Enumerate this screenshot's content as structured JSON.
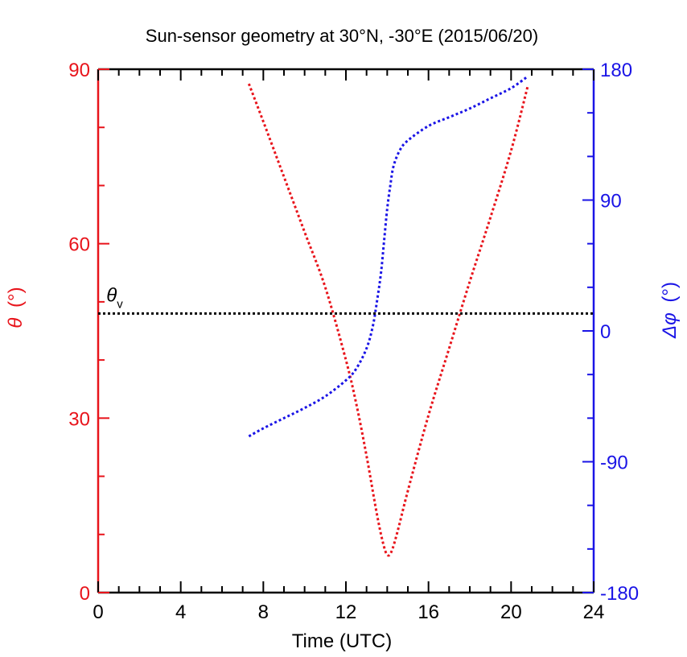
{
  "chart_data": {
    "type": "line",
    "title": "Sun-sensor geometry at 30°N, -30°E (2015/06/20)",
    "xlabel": "Time (UTC)",
    "xlim": [
      0,
      24
    ],
    "x_ticks": [
      0,
      4,
      8,
      12,
      16,
      20,
      24
    ],
    "y_left": {
      "label": "θ (°)",
      "label_symbol": "θ",
      "label_unit": "(°)",
      "lim": [
        0,
        90
      ],
      "ticks": [
        0,
        30,
        60,
        90
      ],
      "color": "#e8141b"
    },
    "y_right": {
      "label": "Δφ (°)",
      "label_symbol": "Δφ",
      "label_unit": "(°)",
      "lim": [
        -180,
        180
      ],
      "ticks": [
        -180,
        -90,
        0,
        90,
        180
      ],
      "color": "#1a14e6"
    },
    "series": [
      {
        "axis": "left",
        "color": "#e8141b",
        "style": "dotted",
        "x": [
          7.3,
          8,
          9,
          10,
          11,
          12,
          12.5,
          13,
          13.5,
          13.8,
          14.0,
          14.2,
          14.5,
          15,
          16,
          17,
          18,
          19,
          20,
          20.8
        ],
        "y": [
          87.5,
          81,
          71.5,
          62,
          52.5,
          40,
          32.5,
          23.5,
          13.5,
          8.5,
          6.5,
          7,
          10.5,
          17.5,
          30.5,
          42,
          53.5,
          64.5,
          76,
          87
        ]
      },
      {
        "axis": "right",
        "color": "#1a14e6",
        "style": "dotted",
        "x": [
          7.3,
          8,
          9,
          10,
          11,
          12,
          12.5,
          13,
          13.3,
          13.5,
          13.7,
          13.85,
          14.0,
          14.15,
          14.3,
          14.6,
          15,
          16,
          17,
          18,
          19,
          20,
          20.8
        ],
        "y": [
          -72.5,
          -67,
          -60,
          -53,
          -45,
          -34,
          -26,
          -12,
          3,
          20,
          40,
          62,
          84,
          100,
          113,
          124,
          131,
          141,
          147,
          153,
          160,
          167,
          175
        ]
      },
      {
        "axis": "left",
        "color": "#000000",
        "style": "dotted",
        "x": [
          0,
          24
        ],
        "y": [
          48,
          48
        ]
      }
    ],
    "annotations": [
      {
        "text": "θ",
        "subscript": "v",
        "x": 0.4,
        "y": 49.5,
        "axis": "left"
      }
    ],
    "grid": false
  }
}
